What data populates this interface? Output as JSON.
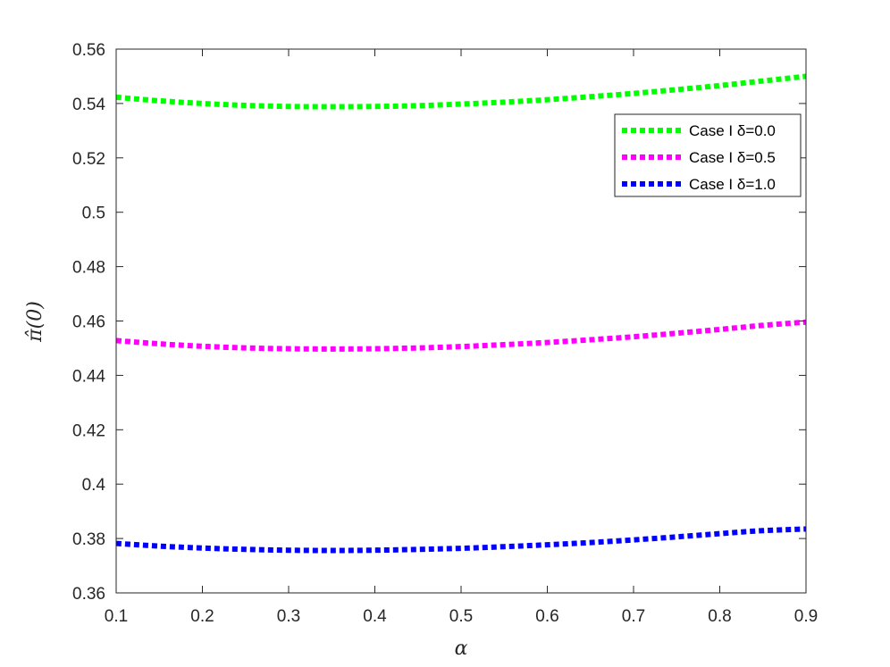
{
  "chart_data": {
    "type": "line",
    "title": "",
    "xlabel": "α",
    "ylabel": "π̂(0)",
    "xlim": [
      0.1,
      0.9
    ],
    "ylim": [
      0.36,
      0.56
    ],
    "grid": false,
    "legend_position": "top-right",
    "x_ticks": [
      "0.1",
      "0.2",
      "0.3",
      "0.4",
      "0.5",
      "0.6",
      "0.7",
      "0.8",
      "0.9"
    ],
    "y_ticks": [
      "0.36",
      "0.38",
      "0.4",
      "0.42",
      "0.44",
      "0.46",
      "0.48",
      "0.5",
      "0.52",
      "0.54",
      "0.56"
    ],
    "x": [
      0.1,
      0.15,
      0.2,
      0.25,
      0.3,
      0.35,
      0.4,
      0.45,
      0.5,
      0.55,
      0.6,
      0.65,
      0.7,
      0.75,
      0.8,
      0.85,
      0.9
    ],
    "series": [
      {
        "name": "Case I δ=0.0",
        "color": "#00ff00",
        "values": [
          0.5423,
          0.541,
          0.54,
          0.5393,
          0.5389,
          0.5388,
          0.5389,
          0.5392,
          0.5398,
          0.5405,
          0.5414,
          0.5425,
          0.5437,
          0.5451,
          0.5466,
          0.5483,
          0.55
        ]
      },
      {
        "name": "Case I δ=0.5",
        "color": "#ff00ff",
        "values": [
          0.4528,
          0.4516,
          0.4507,
          0.4501,
          0.4498,
          0.4497,
          0.4498,
          0.4501,
          0.4506,
          0.4513,
          0.4521,
          0.4531,
          0.4542,
          0.4555,
          0.4569,
          0.4584,
          0.4596
        ]
      },
      {
        "name": "Case I δ=1.0",
        "color": "#0000ff",
        "values": [
          0.3782,
          0.3772,
          0.3765,
          0.376,
          0.3757,
          0.3756,
          0.3757,
          0.376,
          0.3764,
          0.377,
          0.3777,
          0.3785,
          0.3795,
          0.3806,
          0.3818,
          0.3829,
          0.3835
        ]
      }
    ]
  }
}
